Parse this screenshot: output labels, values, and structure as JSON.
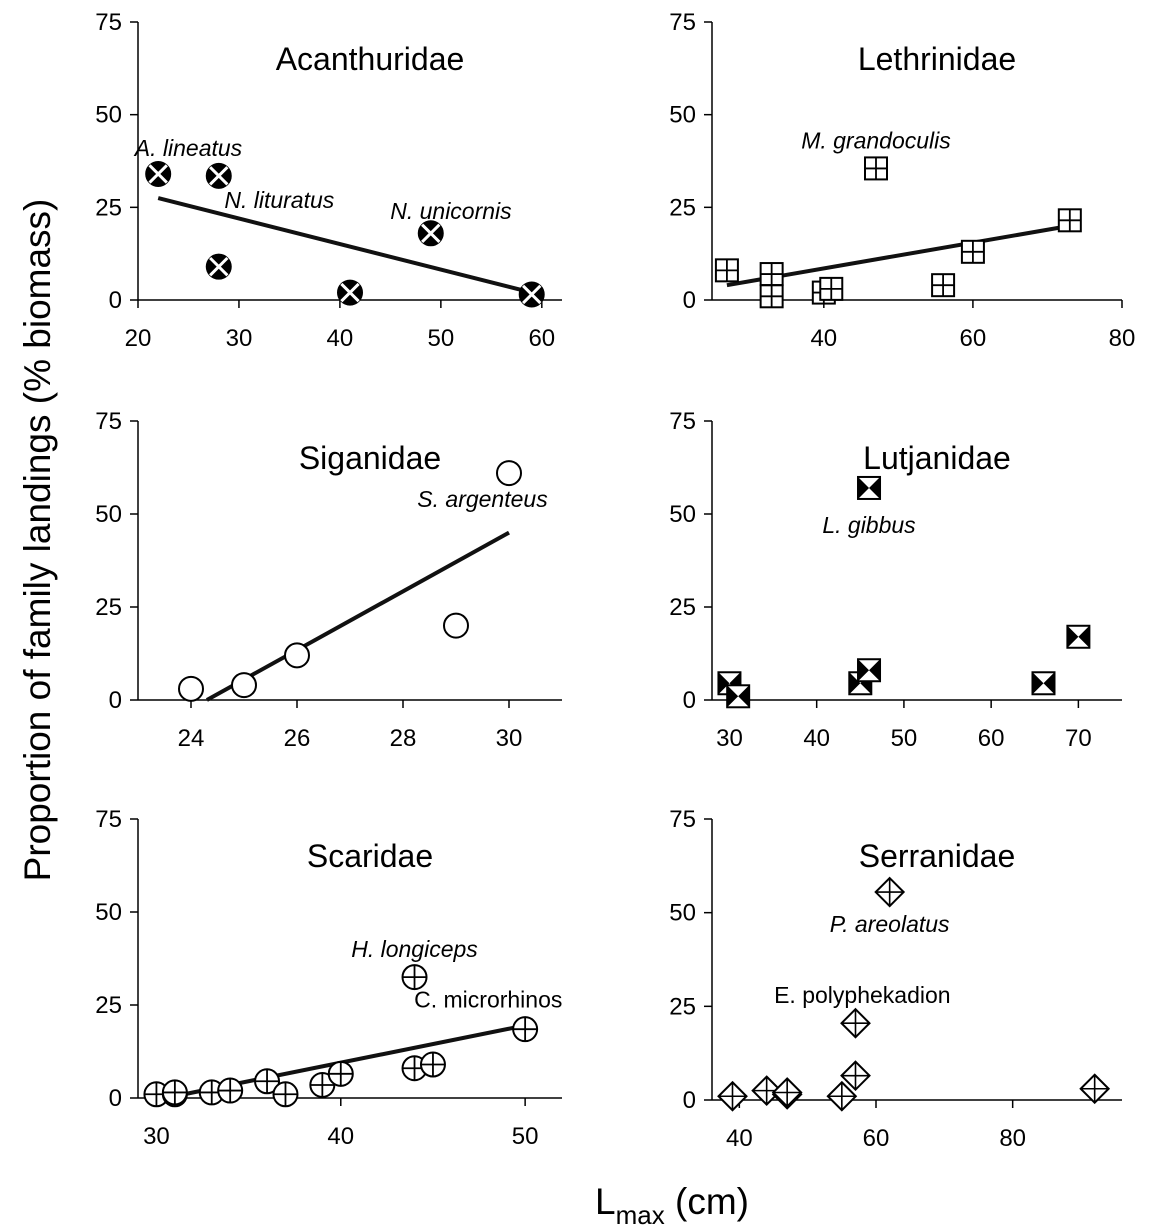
{
  "figure": {
    "ylabel": "Proportion of family landings (% biomass)",
    "xlabel_main": "L",
    "xlabel_sub": "max",
    "xlabel_unit": " (cm)"
  },
  "chart_data": [
    {
      "type": "scatter",
      "title": "Acanthuridae",
      "marker": "circle-x-filled",
      "xlim": [
        20,
        62
      ],
      "xticks": [
        20,
        30,
        40,
        50,
        60
      ],
      "ylim": [
        0,
        75
      ],
      "yticks": [
        0,
        25,
        50,
        75
      ],
      "points": [
        [
          22,
          34
        ],
        [
          28,
          33.5
        ],
        [
          28,
          9
        ],
        [
          41,
          2
        ],
        [
          49,
          18
        ],
        [
          59,
          1.5
        ]
      ],
      "trend": [
        [
          22,
          27.5
        ],
        [
          59,
          2
        ]
      ],
      "annotations": [
        {
          "text": "A. lineatus",
          "x": 25,
          "y": 41,
          "italic": true
        },
        {
          "text": "N. lituratus",
          "x": 34,
          "y": 27,
          "italic": true
        },
        {
          "text": "N. unicornis",
          "x": 51,
          "y": 24,
          "italic": true
        }
      ]
    },
    {
      "type": "scatter",
      "title": "Lethrinidae",
      "marker": "square-plus",
      "xlim": [
        25,
        80
      ],
      "xticks": [
        40,
        60,
        80
      ],
      "ylim": [
        0,
        75
      ],
      "yticks": [
        0,
        25,
        50,
        75
      ],
      "points": [
        [
          27,
          8
        ],
        [
          33,
          7
        ],
        [
          33,
          1
        ],
        [
          40,
          2
        ],
        [
          41,
          3
        ],
        [
          47,
          35.5
        ],
        [
          56,
          4
        ],
        [
          60,
          13
        ],
        [
          73,
          21.5
        ]
      ],
      "trend": [
        [
          27,
          4
        ],
        [
          73,
          20
        ]
      ],
      "annotations": [
        {
          "text": "M. grandoculis",
          "x": 47,
          "y": 43,
          "italic": true
        }
      ]
    },
    {
      "type": "scatter",
      "title": "Siganidae",
      "marker": "circle-open",
      "xlim": [
        23,
        31
      ],
      "xticks": [
        24,
        26,
        28,
        30
      ],
      "ylim": [
        0,
        75
      ],
      "yticks": [
        0,
        25,
        50,
        75
      ],
      "points": [
        [
          24,
          3
        ],
        [
          25,
          4
        ],
        [
          26,
          12
        ],
        [
          29,
          20
        ],
        [
          30,
          61
        ]
      ],
      "trend": [
        [
          24.3,
          0
        ],
        [
          30,
          45
        ]
      ],
      "annotations": [
        {
          "text": "S. argenteus",
          "x": 29.5,
          "y": 54,
          "italic": true
        }
      ]
    },
    {
      "type": "scatter",
      "title": "Lutjanidae",
      "marker": "square-hourglass",
      "xlim": [
        28,
        75
      ],
      "xticks": [
        30,
        40,
        50,
        60,
        70
      ],
      "ylim": [
        0,
        75
      ],
      "yticks": [
        0,
        25,
        50,
        75
      ],
      "points": [
        [
          30,
          4.5
        ],
        [
          31,
          1
        ],
        [
          45,
          4.5
        ],
        [
          46,
          8
        ],
        [
          46,
          57
        ],
        [
          66,
          4.5
        ],
        [
          70,
          17
        ]
      ],
      "annotations": [
        {
          "text": "L. gibbus",
          "x": 46,
          "y": 47,
          "italic": true
        }
      ]
    },
    {
      "type": "scatter",
      "title": "Scaridae",
      "marker": "circle-plus",
      "xlim": [
        29,
        52
      ],
      "xticks": [
        30,
        40,
        50
      ],
      "ylim": [
        0,
        75
      ],
      "yticks": [
        0,
        25,
        50,
        75
      ],
      "points": [
        [
          30,
          1
        ],
        [
          31,
          1
        ],
        [
          31,
          1.5
        ],
        [
          33,
          1.5
        ],
        [
          34,
          2
        ],
        [
          36,
          4.5
        ],
        [
          37,
          1
        ],
        [
          39,
          3.5
        ],
        [
          40,
          6.5
        ],
        [
          44,
          8
        ],
        [
          44,
          32.5
        ],
        [
          45,
          9
        ],
        [
          50,
          18.5
        ]
      ],
      "trend": [
        [
          31,
          0.5
        ],
        [
          50,
          19.5
        ]
      ],
      "annotations": [
        {
          "text": "H. longiceps",
          "x": 44,
          "y": 40,
          "italic": true
        },
        {
          "text": "C. microrhinos",
          "x": 48,
          "y": 26.5,
          "italic": false
        }
      ]
    },
    {
      "type": "scatter",
      "title": "Serranidae",
      "marker": "diamond-plus",
      "xlim": [
        36,
        96
      ],
      "xticks": [
        40,
        60,
        80
      ],
      "ylim": [
        0,
        75
      ],
      "yticks": [
        0,
        25,
        50,
        75
      ],
      "points": [
        [
          39,
          1
        ],
        [
          44,
          2.5
        ],
        [
          47,
          1.5
        ],
        [
          47,
          2
        ],
        [
          55,
          1
        ],
        [
          57,
          6.5
        ],
        [
          57,
          20.5
        ],
        [
          62,
          55.5
        ],
        [
          92,
          3
        ]
      ],
      "annotations": [
        {
          "text": "P. areolatus",
          "x": 62,
          "y": 47,
          "italic": true
        },
        {
          "text": "E. polyphekadion",
          "x": 58,
          "y": 28,
          "italic": false
        }
      ]
    }
  ]
}
